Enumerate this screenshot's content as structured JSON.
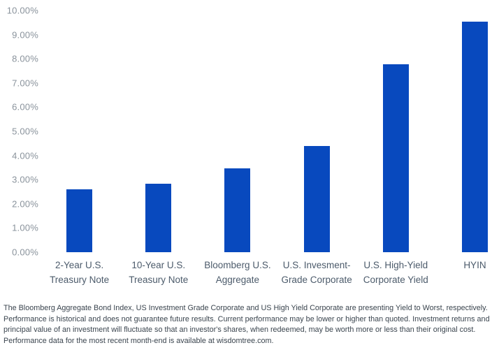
{
  "chart_data": {
    "type": "bar",
    "categories": [
      "2-Year U.S. Treasury Note",
      "10-Year U.S. Treasury Note",
      "Bloomberg U.S. Aggregate",
      "U.S. Invesment-Grade Corporate",
      "U.S. High-Yield Corporate Yield",
      "HYIN"
    ],
    "category_label_lines": [
      [
        "2-Year U.S.",
        "Treasury Note"
      ],
      [
        "10-Year U.S.",
        "Treasury Note"
      ],
      [
        "Bloomberg U.S.",
        "Aggregate"
      ],
      [
        "U.S. Invesment-",
        "Grade Corporate"
      ],
      [
        "U.S. High-Yield",
        "Corporate Yield"
      ],
      [
        "HYIN"
      ]
    ],
    "values": [
      2.6,
      2.82,
      3.47,
      4.4,
      7.77,
      9.54
    ],
    "value_unit": "percent",
    "y_axis_tick_labels": [
      "10.00%",
      "9.00%",
      "8.00%",
      "7.00%",
      "6.00%",
      "5.00%",
      "4.00%",
      "3.00%",
      "2.00%",
      "1.00%",
      "0.00%"
    ],
    "ylim": [
      0,
      10
    ],
    "grid": false,
    "legend": "none",
    "bar_color": "#0849BE"
  },
  "footnote": {
    "text": "The Bloomberg Aggregate Bond Index, US Investment Grade Corporate and US High Yield Corporate are presenting Yield to Worst, respectively. Performance is historical and does not guarantee future results. Current performance may be lower or higher than quoted. Investment returns and principal value of an investment will fluctuate so that an investor's shares, when redeemed, may be worth more or less than their original cost. Performance data for the most recent month-end is available at wisdomtree.com."
  },
  "colors": {
    "bar": "#0849BE",
    "y_axis_label": "#8A939C",
    "category_label": "#4C5B6B",
    "footnote_text": "#3A444E",
    "background": "#FFFFFF"
  }
}
